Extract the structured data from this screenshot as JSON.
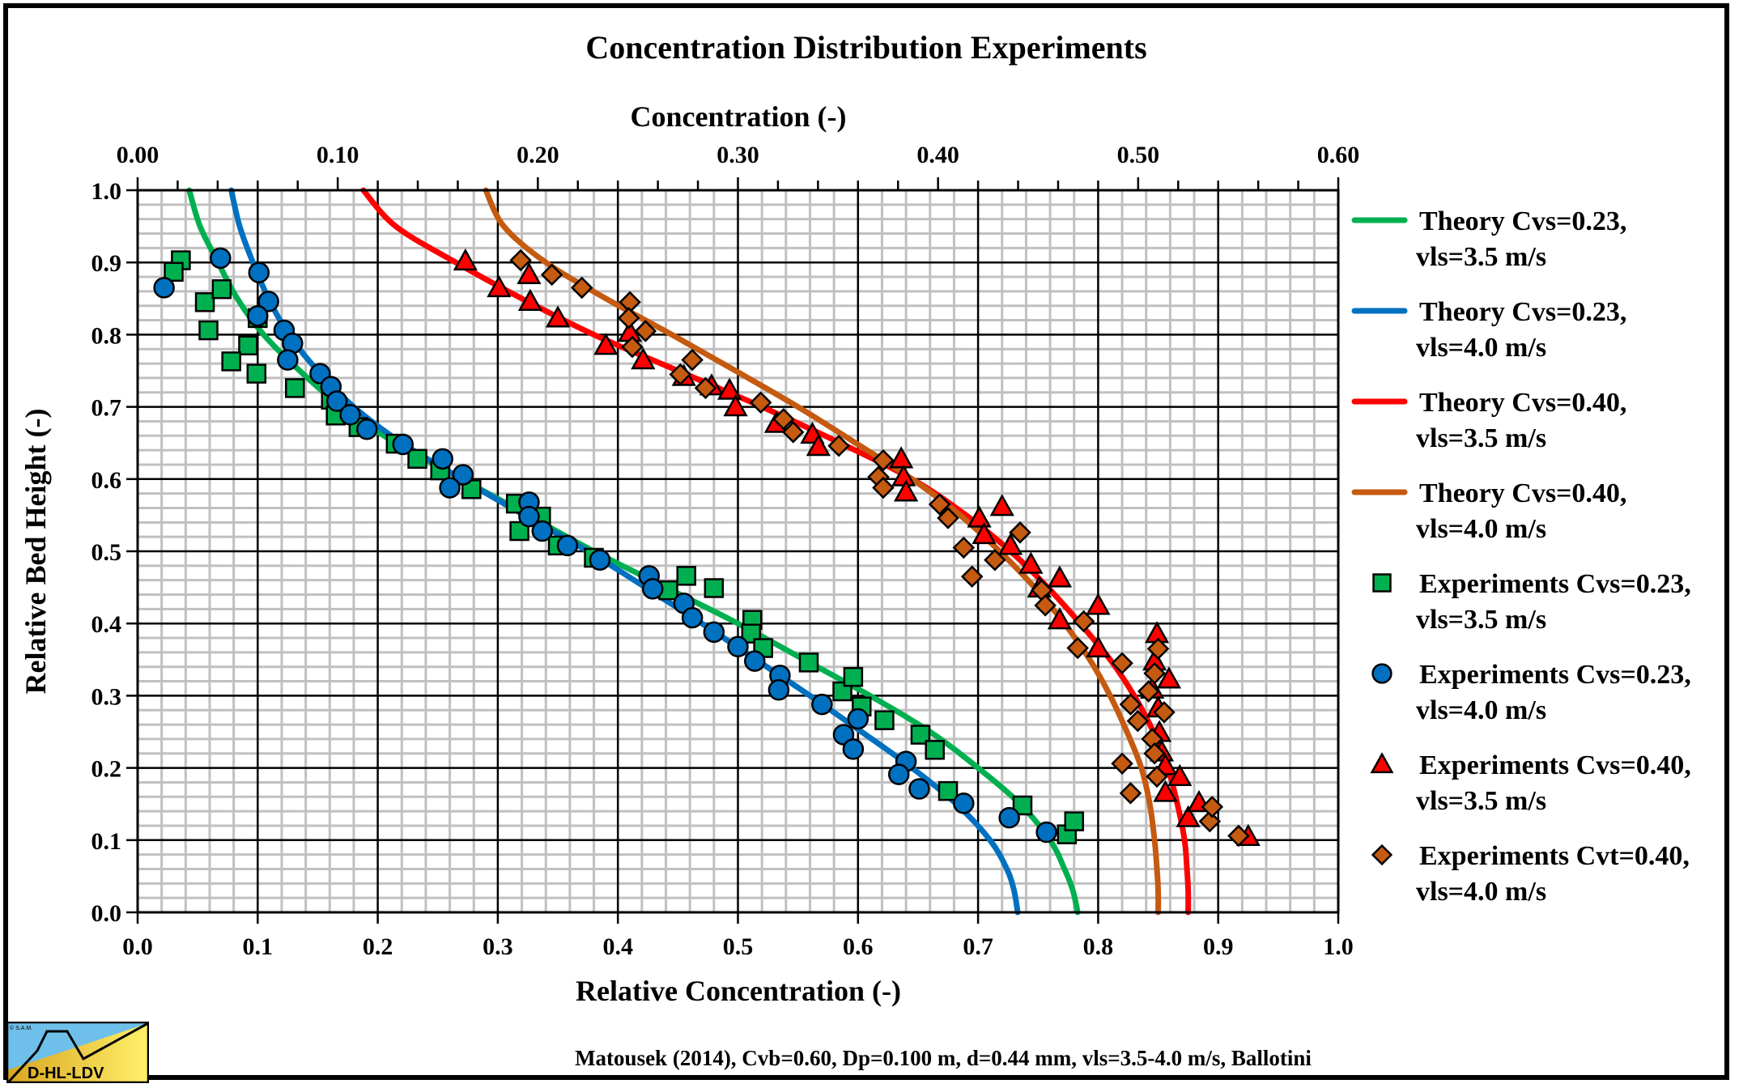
{
  "chart_data": {
    "type": "scatter",
    "title": "Concentration  Distribution  Experiments",
    "xlabel": "Relative Concentration (-)",
    "ylabel": "Relative Bed Height (-)",
    "x2label": "Concentration (-)",
    "xlim": [
      0,
      1.0
    ],
    "ylim": [
      0,
      1.0
    ],
    "x2lim": [
      0,
      0.6
    ],
    "grid": true,
    "legend_position": "right",
    "xticks": [
      "0.0",
      "0.1",
      "0.2",
      "0.3",
      "0.4",
      "0.5",
      "0.6",
      "0.7",
      "0.8",
      "0.9",
      "1.0"
    ],
    "yticks": [
      "0.0",
      "0.1",
      "0.2",
      "0.3",
      "0.4",
      "0.5",
      "0.6",
      "0.7",
      "0.8",
      "0.9",
      "1.0"
    ],
    "x2ticks": [
      "0.00",
      "0.10",
      "0.20",
      "0.30",
      "0.40",
      "0.50",
      "0.60"
    ],
    "footer": "Matousek (2014), Cvb=0.60,  Dp=0.100 m,  d=0.44  mm,  vls=3.5-4.0 m/s,  Ballotini",
    "series": [
      {
        "name": "Theory Cvs=0.23, vls=3.5 m/s",
        "label_line1": "Theory Cvs=0.23,",
        "label_line2": "vls=3.5 m/s",
        "kind": "line",
        "color": "#00b050",
        "x": [
          0.043,
          0.052,
          0.067,
          0.083,
          0.105,
          0.135,
          0.17,
          0.215,
          0.27,
          0.325,
          0.38,
          0.44,
          0.5,
          0.555,
          0.61,
          0.66,
          0.7,
          0.735,
          0.76,
          0.772,
          0.779,
          0.783
        ],
        "y": [
          1.0,
          0.95,
          0.9,
          0.85,
          0.8,
          0.75,
          0.7,
          0.65,
          0.6,
          0.55,
          0.5,
          0.45,
          0.4,
          0.35,
          0.3,
          0.25,
          0.2,
          0.15,
          0.1,
          0.06,
          0.03,
          0.0
        ]
      },
      {
        "name": "Theory Cvs=0.23, vls=4.0 m/s",
        "label_line1": "Theory Cvs=0.23,",
        "label_line2": "vls=4.0 m/s",
        "kind": "line",
        "color": "#0070c0",
        "x": [
          0.078,
          0.085,
          0.096,
          0.109,
          0.126,
          0.15,
          0.18,
          0.22,
          0.27,
          0.322,
          0.375,
          0.423,
          0.47,
          0.515,
          0.56,
          0.603,
          0.645,
          0.682,
          0.71,
          0.724,
          0.73,
          0.733
        ],
        "y": [
          1.0,
          0.95,
          0.9,
          0.85,
          0.8,
          0.75,
          0.7,
          0.65,
          0.6,
          0.55,
          0.5,
          0.45,
          0.4,
          0.35,
          0.3,
          0.25,
          0.2,
          0.15,
          0.1,
          0.06,
          0.03,
          0.0
        ]
      },
      {
        "name": "Theory Cvs=0.40, vls=3.5 m/s",
        "label_line1": "Theory Cvs=0.40,",
        "label_line2": "vls=3.5 m/s",
        "kind": "line",
        "color": "#ff0000",
        "x": [
          0.188,
          0.215,
          0.265,
          0.32,
          0.38,
          0.45,
          0.52,
          0.585,
          0.645,
          0.69,
          0.727,
          0.758,
          0.785,
          0.81,
          0.83,
          0.846,
          0.858,
          0.866,
          0.872,
          0.874,
          0.875,
          0.875
        ],
        "y": [
          1.0,
          0.95,
          0.9,
          0.85,
          0.8,
          0.75,
          0.7,
          0.65,
          0.6,
          0.55,
          0.5,
          0.45,
          0.4,
          0.35,
          0.3,
          0.25,
          0.2,
          0.15,
          0.1,
          0.06,
          0.03,
          0.0
        ]
      },
      {
        "name": "Theory Cvs=0.40, vls=4.0 m/s",
        "label_line1": "Theory Cvs=0.40,",
        "label_line2": "vls=4.0 m/s",
        "kind": "line",
        "color": "#c55a11",
        "x": [
          0.29,
          0.305,
          0.34,
          0.39,
          0.445,
          0.498,
          0.55,
          0.598,
          0.645,
          0.685,
          0.718,
          0.747,
          0.772,
          0.793,
          0.81,
          0.824,
          0.836,
          0.843,
          0.847,
          0.849,
          0.85,
          0.85
        ],
        "y": [
          1.0,
          0.95,
          0.9,
          0.85,
          0.8,
          0.75,
          0.7,
          0.65,
          0.6,
          0.55,
          0.5,
          0.45,
          0.4,
          0.35,
          0.3,
          0.25,
          0.2,
          0.15,
          0.1,
          0.06,
          0.03,
          0.0
        ]
      },
      {
        "name": "Experiments Cvs=0.23, vls=3.5 m/s",
        "label_line1": "Experiments Cvs=0.23,",
        "label_line2": "vls=3.5 m/s",
        "kind": "marker",
        "marker": "square",
        "color": "#00b050",
        "x": [
          0.036,
          0.03,
          0.056,
          0.07,
          0.059,
          0.092,
          0.078,
          0.1,
          0.099,
          0.131,
          0.161,
          0.165,
          0.184,
          0.215,
          0.233,
          0.252,
          0.278,
          0.315,
          0.336,
          0.318,
          0.35,
          0.38,
          0.442,
          0.457,
          0.48,
          0.512,
          0.511,
          0.521,
          0.559,
          0.587,
          0.596,
          0.603,
          0.622,
          0.652,
          0.664,
          0.675,
          0.737,
          0.774,
          0.78
        ],
        "y": [
          0.903,
          0.887,
          0.845,
          0.863,
          0.806,
          0.785,
          0.763,
          0.823,
          0.746,
          0.726,
          0.71,
          0.688,
          0.672,
          0.649,
          0.628,
          0.612,
          0.586,
          0.566,
          0.548,
          0.528,
          0.508,
          0.491,
          0.446,
          0.466,
          0.449,
          0.405,
          0.386,
          0.366,
          0.346,
          0.306,
          0.326,
          0.285,
          0.266,
          0.246,
          0.225,
          0.168,
          0.148,
          0.108,
          0.126
        ]
      },
      {
        "name": "Experiments Cvs=0.23, vls=4.0 m/s",
        "label_line1": "Experiments Cvs=0.23,",
        "label_line2": "vls=4.0 m/s",
        "kind": "marker",
        "marker": "circle",
        "color": "#0070c0",
        "x": [
          0.022,
          0.069,
          0.101,
          0.109,
          0.1,
          0.122,
          0.129,
          0.125,
          0.152,
          0.161,
          0.166,
          0.177,
          0.191,
          0.221,
          0.254,
          0.271,
          0.26,
          0.326,
          0.326,
          0.337,
          0.358,
          0.385,
          0.426,
          0.429,
          0.455,
          0.462,
          0.48,
          0.5,
          0.514,
          0.535,
          0.534,
          0.57,
          0.6,
          0.588,
          0.596,
          0.64,
          0.634,
          0.651,
          0.688,
          0.726,
          0.757
        ],
        "y": [
          0.865,
          0.906,
          0.886,
          0.846,
          0.826,
          0.806,
          0.788,
          0.765,
          0.746,
          0.728,
          0.708,
          0.689,
          0.669,
          0.648,
          0.628,
          0.606,
          0.588,
          0.568,
          0.548,
          0.528,
          0.508,
          0.488,
          0.466,
          0.448,
          0.428,
          0.408,
          0.388,
          0.368,
          0.348,
          0.328,
          0.308,
          0.288,
          0.268,
          0.246,
          0.226,
          0.209,
          0.191,
          0.171,
          0.151,
          0.131,
          0.111
        ]
      },
      {
        "name": "Experiments Cvs=0.40, vls=3.5 m/s",
        "label_line1": "Experiments Cvs=0.40,",
        "label_line2": "vls=3.5 m/s",
        "kind": "marker",
        "marker": "triangle",
        "color": "#ff0000",
        "x": [
          0.273,
          0.301,
          0.326,
          0.327,
          0.35,
          0.39,
          0.41,
          0.421,
          0.455,
          0.478,
          0.493,
          0.498,
          0.532,
          0.562,
          0.567,
          0.636,
          0.638,
          0.64,
          0.701,
          0.72,
          0.705,
          0.727,
          0.744,
          0.751,
          0.768,
          0.768,
          0.8,
          0.8,
          0.849,
          0.847,
          0.859,
          0.845,
          0.85,
          0.851,
          0.853,
          0.856,
          0.868,
          0.856,
          0.875,
          0.884,
          0.925
        ],
        "y": [
          0.902,
          0.865,
          0.883,
          0.846,
          0.823,
          0.785,
          0.803,
          0.765,
          0.742,
          0.729,
          0.723,
          0.7,
          0.677,
          0.662,
          0.645,
          0.628,
          0.603,
          0.582,
          0.546,
          0.562,
          0.523,
          0.508,
          0.482,
          0.449,
          0.463,
          0.405,
          0.425,
          0.366,
          0.386,
          0.348,
          0.323,
          0.309,
          0.283,
          0.249,
          0.222,
          0.203,
          0.188,
          0.166,
          0.131,
          0.152,
          0.105
        ]
      },
      {
        "name": "Experiments Cvt=0.40, vls=4.0 m/s",
        "label_line1": "Experiments Cvt=0.40,",
        "label_line2": "vls=4.0 m/s",
        "kind": "marker",
        "marker": "diamond",
        "color": "#c55a11",
        "x": [
          0.319,
          0.345,
          0.37,
          0.41,
          0.409,
          0.423,
          0.412,
          0.462,
          0.452,
          0.473,
          0.519,
          0.538,
          0.546,
          0.584,
          0.621,
          0.617,
          0.621,
          0.668,
          0.675,
          0.688,
          0.695,
          0.714,
          0.735,
          0.753,
          0.756,
          0.783,
          0.788,
          0.82,
          0.827,
          0.833,
          0.842,
          0.845,
          0.847,
          0.82,
          0.827,
          0.849,
          0.85,
          0.847,
          0.855,
          0.893,
          0.895,
          0.917
        ],
        "y": [
          0.903,
          0.883,
          0.865,
          0.845,
          0.823,
          0.805,
          0.783,
          0.765,
          0.745,
          0.726,
          0.706,
          0.683,
          0.665,
          0.646,
          0.626,
          0.603,
          0.588,
          0.565,
          0.546,
          0.505,
          0.465,
          0.488,
          0.526,
          0.446,
          0.425,
          0.366,
          0.403,
          0.345,
          0.288,
          0.265,
          0.306,
          0.24,
          0.22,
          0.206,
          0.165,
          0.188,
          0.365,
          0.331,
          0.277,
          0.126,
          0.146,
          0.106
        ]
      }
    ]
  },
  "logo": {
    "copyright": "© S.A.M.",
    "label": "D-HL-LDV"
  }
}
